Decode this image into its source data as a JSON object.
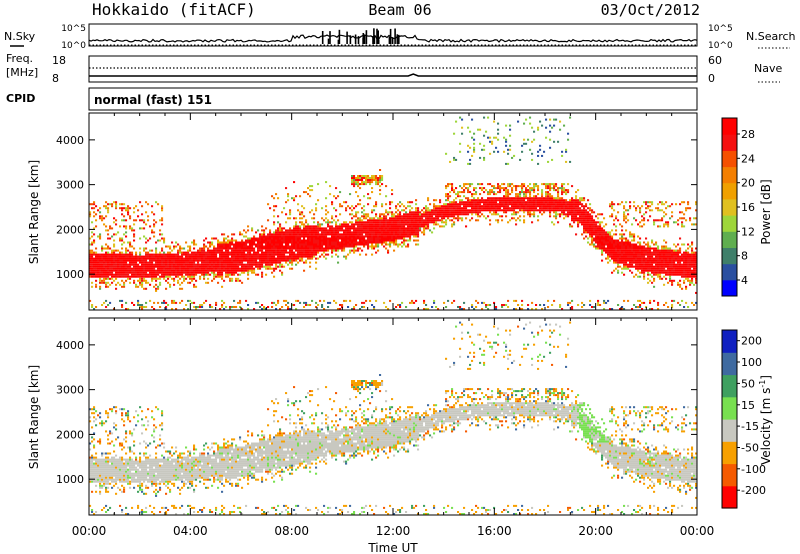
{
  "header": {
    "title": "Hokkaido (fitACF)",
    "beam": "Beam 06",
    "date": "03/Oct/2012"
  },
  "noise_panel": {
    "left_label": "N.Sky",
    "right_label": "N.Search",
    "ticks_left": [
      "10^5",
      "10^0"
    ],
    "ticks_right": [
      "10^5",
      "10^0"
    ]
  },
  "freq_panel": {
    "left_label_1": "Freq.",
    "left_label_2": "[MHz]",
    "right_label": "Nave",
    "ticks_left": [
      "18",
      "8"
    ],
    "ticks_right": [
      "60",
      "0"
    ]
  },
  "cpid_panel": {
    "label": "CPID",
    "mode": "normal (fast) 151"
  },
  "chart_data": [
    {
      "type": "heatmap",
      "quantity": "Power",
      "ylabel": "Slant Range [km]",
      "xlabel": "",
      "yticks": [
        "1000",
        "2000",
        "3000",
        "4000"
      ],
      "ylim": [
        200,
        4600
      ],
      "xlim": [
        0,
        24
      ],
      "colorbar": {
        "label": "Power [dB]",
        "ticks": [
          "4",
          "8",
          "12",
          "16",
          "20",
          "24",
          "28"
        ],
        "colors": [
          "#0000ff",
          "#2a4fa0",
          "#3f7f6a",
          "#5fae4f",
          "#9ed63a",
          "#e0c020",
          "#f0a000",
          "#f47f00",
          "#f55000",
          "#f51010",
          "#ff0000"
        ]
      }
    },
    {
      "type": "heatmap",
      "quantity": "Velocity",
      "ylabel": "Slant Range [km]",
      "xlabel": "Time UT",
      "xticks": [
        "00:00",
        "04:00",
        "08:00",
        "12:00",
        "16:00",
        "20:00",
        "00:00"
      ],
      "yticks": [
        "1000",
        "2000",
        "3000",
        "4000"
      ],
      "ylim": [
        200,
        4600
      ],
      "xlim": [
        0,
        24
      ],
      "colorbar": {
        "label": "Velocity [m s-1]",
        "label_main": "Velocity [m s",
        "label_sup": "-1",
        "label_end": "]",
        "ticks": [
          "-200",
          "-100",
          "-50",
          "-15",
          "15",
          "50",
          "100",
          "200"
        ],
        "colors": [
          "#ff0000",
          "#f55a00",
          "#f7a000",
          "#c8c8c0",
          "#78e050",
          "#3fa060",
          "#3f6aa0",
          "#1020c0"
        ]
      }
    }
  ]
}
